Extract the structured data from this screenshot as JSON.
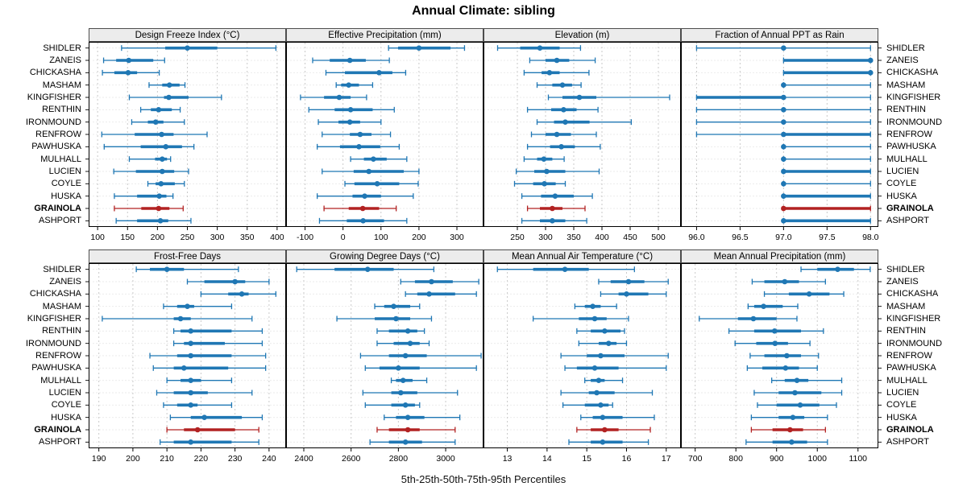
{
  "title": "Annual Climate: sibling",
  "xlabel": "5th-25th-50th-75th-95th Percentiles",
  "percentiles": [
    5,
    25,
    50,
    75,
    95
  ],
  "stations": [
    "SHIDLER",
    "ZANEIS",
    "CHICKASHA",
    "MASHAM",
    "KINGFISHER",
    "RENTHIN",
    "IRONMOUND",
    "RENFROW",
    "PAWHUSKA",
    "MULHALL",
    "LUCIEN",
    "COYLE",
    "HUSKA",
    "GRAINOLA",
    "ASHPORT"
  ],
  "highlight_station": "GRAINOLA",
  "colors": {
    "series": "#1f77b4",
    "highlight": "#b22222",
    "strip_bg": "#ececec",
    "grid_vertical": "#c9c9c9",
    "grid_horizontal": "#d8d8d8",
    "border": "#000000"
  },
  "chart_data": [
    {
      "type": "dotplot-interval",
      "title": "Design Freeze Index (°C)",
      "grid_row": 0,
      "xlim": [
        85,
        415
      ],
      "ticks": [
        100,
        150,
        200,
        250,
        300,
        350,
        400
      ],
      "tick_labels": [
        "100",
        "150",
        "200",
        "250",
        "300",
        "350",
        "400"
      ],
      "values": [
        [
          140,
          213,
          250,
          300,
          398
        ],
        [
          110,
          131,
          152,
          193,
          212
        ],
        [
          108,
          128,
          151,
          166,
          203
        ],
        [
          186,
          208,
          220,
          237,
          246
        ],
        [
          153,
          211,
          219,
          252,
          307
        ],
        [
          172,
          189,
          202,
          224,
          238
        ],
        [
          157,
          184,
          197,
          210,
          245
        ],
        [
          107,
          162,
          207,
          227,
          283
        ],
        [
          111,
          172,
          214,
          241,
          261
        ],
        [
          153,
          196,
          208,
          216,
          222
        ],
        [
          127,
          164,
          208,
          228,
          252
        ],
        [
          184,
          197,
          206,
          229,
          245
        ],
        [
          128,
          166,
          203,
          215,
          226
        ],
        [
          128,
          173,
          202,
          220,
          243
        ],
        [
          131,
          166,
          205,
          218,
          256
        ]
      ]
    },
    {
      "type": "dotplot-interval",
      "title": "Effective Precipitation (mm)",
      "grid_row": 0,
      "xlim": [
        -150,
        370
      ],
      "ticks": [
        -100,
        0,
        100,
        200,
        300
      ],
      "tick_labels": [
        "-100",
        "0",
        "100",
        "200",
        "300"
      ],
      "values": [
        [
          120,
          145,
          200,
          283,
          320
        ],
        [
          -80,
          -35,
          18,
          60,
          122
        ],
        [
          -45,
          5,
          95,
          130,
          165
        ],
        [
          -18,
          -5,
          15,
          42,
          78
        ],
        [
          -112,
          -50,
          -10,
          20,
          62
        ],
        [
          -90,
          -22,
          20,
          78,
          135
        ],
        [
          -65,
          -12,
          18,
          45,
          100
        ],
        [
          -55,
          18,
          45,
          75,
          125
        ],
        [
          -68,
          -8,
          42,
          98,
          148
        ],
        [
          20,
          55,
          80,
          115,
          168
        ],
        [
          -55,
          28,
          68,
          160,
          200
        ],
        [
          5,
          30,
          90,
          148,
          198
        ],
        [
          -68,
          25,
          57,
          100,
          185
        ],
        [
          -50,
          15,
          52,
          95,
          140
        ],
        [
          -62,
          10,
          53,
          108,
          168
        ]
      ]
    },
    {
      "type": "dotplot-interval",
      "title": "Elevation (m)",
      "grid_row": 0,
      "xlim": [
        190,
        540
      ],
      "ticks": [
        250,
        300,
        350,
        400,
        450,
        500
      ],
      "tick_labels": [
        "250",
        "300",
        "350",
        "400",
        "450",
        "500"
      ],
      "values": [
        [
          215,
          255,
          290,
          325,
          362
        ],
        [
          272,
          300,
          320,
          342,
          388
        ],
        [
          262,
          293,
          307,
          325,
          377
        ],
        [
          285,
          312,
          330,
          347,
          363
        ],
        [
          305,
          330,
          360,
          390,
          520
        ],
        [
          268,
          310,
          332,
          355,
          393
        ],
        [
          285,
          315,
          335,
          378,
          452
        ],
        [
          275,
          300,
          320,
          345,
          390
        ],
        [
          268,
          308,
          328,
          352,
          397
        ],
        [
          262,
          285,
          297,
          312,
          333
        ],
        [
          248,
          280,
          302,
          335,
          395
        ],
        [
          245,
          278,
          298,
          318,
          335
        ],
        [
          258,
          292,
          317,
          350,
          383
        ],
        [
          268,
          290,
          312,
          330,
          370
        ],
        [
          258,
          290,
          312,
          335,
          373
        ]
      ]
    },
    {
      "type": "dotplot-interval",
      "title": "Fraction of Annual PPT as Rain",
      "grid_row": 0,
      "xlim": [
        95.82,
        98.09
      ],
      "ticks": [
        96.0,
        96.5,
        97.0,
        97.5,
        98.0
      ],
      "tick_labels": [
        "96.0",
        "96.5",
        "97.0",
        "97.5",
        "98.0"
      ],
      "values": [
        [
          96,
          97,
          97,
          97,
          98
        ],
        [
          97,
          97,
          98,
          98,
          98
        ],
        [
          97,
          97,
          98,
          98,
          98
        ],
        [
          97,
          97,
          97,
          97,
          98
        ],
        [
          96,
          96,
          97,
          97,
          98
        ],
        [
          96,
          97,
          97,
          97,
          98
        ],
        [
          96,
          97,
          97,
          97,
          98
        ],
        [
          96,
          97,
          97,
          98,
          98
        ],
        [
          97,
          97,
          97,
          97,
          98
        ],
        [
          97,
          97,
          97,
          97,
          98
        ],
        [
          97,
          97,
          97,
          98,
          98
        ],
        [
          97,
          97,
          97,
          97,
          98
        ],
        [
          97,
          97,
          97,
          98,
          98
        ],
        [
          97,
          97,
          97,
          98,
          98
        ],
        [
          97,
          97,
          97,
          98,
          98
        ]
      ]
    },
    {
      "type": "dotplot-interval",
      "title": "Frost-Free Days",
      "grid_row": 1,
      "xlim": [
        187,
        245
      ],
      "ticks": [
        190,
        200,
        210,
        220,
        230,
        240
      ],
      "tick_labels": [
        "190",
        "200",
        "210",
        "220",
        "230",
        "240"
      ],
      "values": [
        [
          201,
          205,
          210,
          215,
          231
        ],
        [
          216,
          221,
          230,
          233,
          240
        ],
        [
          220,
          228,
          232,
          234,
          242
        ],
        [
          209,
          213,
          216,
          218,
          229
        ],
        [
          191,
          212,
          214,
          217,
          235
        ],
        [
          212,
          214,
          217,
          229,
          238
        ],
        [
          212,
          215,
          217,
          227,
          238
        ],
        [
          205,
          213,
          217,
          229,
          239
        ],
        [
          206,
          212,
          215,
          228,
          239
        ],
        [
          210,
          214,
          217,
          220,
          229
        ],
        [
          207,
          212,
          217,
          222,
          235
        ],
        [
          209,
          213,
          217,
          219,
          229
        ],
        [
          211,
          217,
          221,
          232,
          238
        ],
        [
          210,
          215,
          219,
          230,
          237
        ],
        [
          208,
          212,
          217,
          229,
          237
        ]
      ]
    },
    {
      "type": "dotplot-interval",
      "title": "Growing Degree Days (°C)",
      "grid_row": 1,
      "xlim": [
        2325,
        3160
      ],
      "ticks": [
        2400,
        2600,
        2800,
        3000
      ],
      "tick_labels": [
        "2400",
        "2600",
        "2800",
        "3000"
      ],
      "values": [
        [
          2370,
          2530,
          2670,
          2780,
          2950
        ],
        [
          2810,
          2870,
          2940,
          3030,
          3140
        ],
        [
          2830,
          2880,
          2930,
          3040,
          3130
        ],
        [
          2700,
          2740,
          2780,
          2850,
          2890
        ],
        [
          2540,
          2700,
          2790,
          2850,
          2940
        ],
        [
          2710,
          2760,
          2840,
          2880,
          2910
        ],
        [
          2710,
          2780,
          2850,
          2890,
          2930
        ],
        [
          2640,
          2760,
          2830,
          2920,
          3150
        ],
        [
          2660,
          2720,
          2800,
          2890,
          3130
        ],
        [
          2770,
          2790,
          2820,
          2860,
          2920
        ],
        [
          2650,
          2770,
          2810,
          2880,
          3050
        ],
        [
          2660,
          2770,
          2830,
          2870,
          2890
        ],
        [
          2740,
          2790,
          2840,
          2910,
          3060
        ],
        [
          2710,
          2760,
          2840,
          2890,
          3040
        ],
        [
          2680,
          2760,
          2830,
          2900,
          3040
        ]
      ]
    },
    {
      "type": "dotplot-interval",
      "title": "Mean Annual Air Temperature (°C)",
      "grid_row": 1,
      "xlim": [
        12.4,
        17.37
      ],
      "ticks": [
        13,
        14,
        15,
        16,
        17
      ],
      "tick_labels": [
        "13",
        "14",
        "15",
        "16",
        "17"
      ],
      "values": [
        [
          12.75,
          13.65,
          14.45,
          15.05,
          16.2
        ],
        [
          15.3,
          15.6,
          16.05,
          16.45,
          17.05
        ],
        [
          15.35,
          15.8,
          16.0,
          16.55,
          17.0
        ],
        [
          14.7,
          14.95,
          15.15,
          15.35,
          15.75
        ],
        [
          13.65,
          14.8,
          15.2,
          15.5,
          16.05
        ],
        [
          14.75,
          15.1,
          15.45,
          15.85,
          15.95
        ],
        [
          14.8,
          15.3,
          15.55,
          15.75,
          16.0
        ],
        [
          14.35,
          15.0,
          15.35,
          15.95,
          17.05
        ],
        [
          14.45,
          14.75,
          15.2,
          15.8,
          17.0
        ],
        [
          14.95,
          15.1,
          15.3,
          15.45,
          15.9
        ],
        [
          14.35,
          15.05,
          15.25,
          15.7,
          16.65
        ],
        [
          14.4,
          14.95,
          15.35,
          15.55,
          15.65
        ],
        [
          14.85,
          15.15,
          15.4,
          15.9,
          16.7
        ],
        [
          14.75,
          15.1,
          15.45,
          15.8,
          16.6
        ],
        [
          14.55,
          15.1,
          15.4,
          15.9,
          16.55
        ]
      ]
    },
    {
      "type": "dotplot-interval",
      "title": "Mean Annual Precipitation (mm)",
      "grid_row": 1,
      "xlim": [
        665,
        1150
      ],
      "ticks": [
        700,
        800,
        900,
        1000,
        1100
      ],
      "tick_labels": [
        "700",
        "800",
        "900",
        "1000",
        "1100"
      ],
      "values": [
        [
          960,
          1000,
          1050,
          1090,
          1130
        ],
        [
          840,
          870,
          920,
          955,
          1020
        ],
        [
          870,
          930,
          980,
          1030,
          1065
        ],
        [
          830,
          845,
          868,
          915,
          952
        ],
        [
          710,
          805,
          843,
          900,
          950
        ],
        [
          783,
          845,
          895,
          960,
          1015
        ],
        [
          798,
          850,
          896,
          928,
          982
        ],
        [
          835,
          870,
          925,
          960,
          1003
        ],
        [
          828,
          865,
          922,
          955,
          1000
        ],
        [
          888,
          920,
          950,
          978,
          1060
        ],
        [
          845,
          905,
          945,
          1010,
          1060
        ],
        [
          853,
          900,
          958,
          1005,
          1047
        ],
        [
          838,
          905,
          940,
          968,
          1025
        ],
        [
          838,
          890,
          933,
          965,
          1020
        ],
        [
          825,
          890,
          937,
          975,
          1025
        ]
      ]
    }
  ]
}
